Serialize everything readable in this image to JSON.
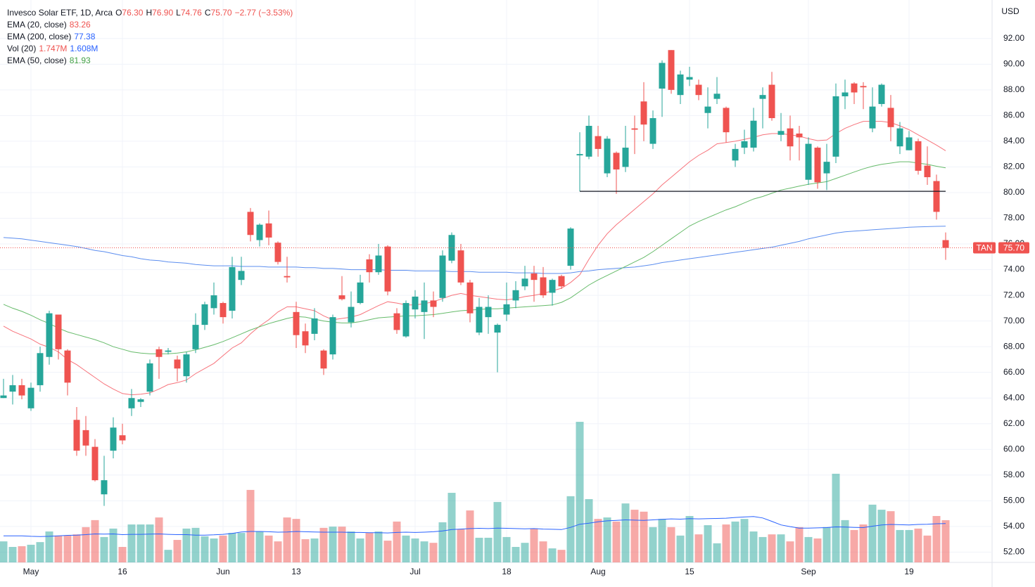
{
  "chart_data": {
    "type": "candlestick",
    "legend": {
      "title": "Invesco Solar ETF, 1D, Arca",
      "ohlc": [
        [
          "O",
          "76.30"
        ],
        [
          "H",
          "76.90"
        ],
        [
          "L",
          "74.76"
        ],
        [
          "C",
          "75.70"
        ]
      ],
      "change": "−2.77 (−3.53%)",
      "change_color": "#ef5350"
    },
    "currency": "USD",
    "ticker": "TAN",
    "last_price_label": "75.70",
    "up_color": "#26a69a",
    "down_color": "#ef5350",
    "ylim": [
      51.2,
      95
    ],
    "yticks": [
      {
        "value": 52,
        "label": "52.00"
      },
      {
        "value": 54,
        "label": "54.00"
      },
      {
        "value": 56,
        "label": "56.00"
      },
      {
        "value": 58,
        "label": "58.00"
      },
      {
        "value": 60,
        "label": "60.00"
      },
      {
        "value": 62,
        "label": "62.00"
      },
      {
        "value": 64,
        "label": "64.00"
      },
      {
        "value": 66,
        "label": "66.00"
      },
      {
        "value": 68,
        "label": "68.00"
      },
      {
        "value": 70,
        "label": "70.00"
      },
      {
        "value": 72,
        "label": "72.00"
      },
      {
        "value": 74,
        "label": "74.00"
      },
      {
        "value": 76,
        "label": "76.00"
      },
      {
        "value": 78,
        "label": "78.00"
      },
      {
        "value": 80,
        "label": "80.00"
      },
      {
        "value": 82,
        "label": "82.00"
      },
      {
        "value": 84,
        "label": "84.00"
      },
      {
        "value": 86,
        "label": "86.00"
      },
      {
        "value": 88,
        "label": "88.00"
      },
      {
        "value": 90,
        "label": "90.00"
      },
      {
        "value": 92,
        "label": "92.00"
      }
    ],
    "grid": true,
    "categories": [
      null,
      null,
      null,
      "May",
      null,
      null,
      null,
      null,
      null,
      null,
      null,
      null,
      null,
      "16",
      null,
      null,
      null,
      null,
      null,
      null,
      null,
      null,
      null,
      null,
      "Jun",
      null,
      null,
      null,
      null,
      null,
      null,
      null,
      "13",
      null,
      null,
      null,
      null,
      null,
      null,
      null,
      null,
      null,
      null,
      null,
      null,
      "Jul",
      null,
      null,
      null,
      null,
      null,
      null,
      null,
      null,
      null,
      "18",
      null,
      null,
      null,
      null,
      null,
      null,
      null,
      null,
      null,
      "Aug",
      null,
      null,
      null,
      null,
      null,
      null,
      null,
      null,
      null,
      "15",
      null,
      null,
      null,
      null,
      null,
      null,
      null,
      null,
      null,
      null,
      null,
      null,
      "Sep",
      null,
      null,
      null,
      null,
      null,
      null,
      null,
      null,
      null,
      null,
      "19",
      null,
      null,
      null,
      null
    ],
    "open": [
      64,
      64.5,
      65,
      63.2,
      65,
      67.2,
      70.5,
      67.7,
      62.3,
      61.5,
      60.2,
      56.5,
      59.9,
      61.1,
      63.2,
      63.7,
      64.5,
      67.8,
      67.6,
      67,
      65.7,
      67.8,
      69.7,
      71,
      71.4,
      70.8,
      73.2,
      78.5,
      76.3,
      77.6,
      76.1,
      73.5,
      70.7,
      69.2,
      69,
      67.7,
      67.4,
      72,
      69.9,
      71.4,
      74.8,
      73.8,
      75.8,
      70.6,
      68.8,
      70.9,
      70.7,
      71.6,
      71.8,
      74.7,
      75.5,
      73,
      69.1,
      70.3,
      69.1,
      70.5,
      71.6,
      72.7,
      73.7,
      73.4,
      72.2,
      73.5,
      74.3,
      82.9,
      82.8,
      84.4,
      81.5,
      83.1,
      82,
      85,
      87.1,
      83.8,
      88.1,
      91.1,
      87.6,
      88.8,
      88.4,
      86.2,
      87.3,
      86.6,
      82.5,
      83.5,
      83.5,
      87.3,
      88.4,
      84.5,
      85,
      84.6,
      81,
      83.5,
      81.5,
      82.8,
      87.5,
      88.5,
      88.3,
      85,
      86.9,
      86.6,
      83.6,
      83.3,
      84,
      82.1,
      80.9,
      76.3
    ],
    "high": [
      65.5,
      65.8,
      65.5,
      65.2,
      68,
      70.8,
      70.5,
      67.8,
      63.3,
      62.6,
      60.8,
      59.5,
      62.5,
      62,
      64.7,
      64,
      67,
      68,
      67.9,
      67.3,
      67.6,
      70.6,
      71.5,
      73,
      71.5,
      75,
      75,
      78.8,
      77.6,
      78.6,
      76.2,
      75,
      71.5,
      69.8,
      71,
      67.8,
      70.5,
      73.5,
      72.3,
      73.6,
      75.2,
      76,
      75.9,
      71,
      71.6,
      72.4,
      73,
      72.3,
      75.5,
      76.9,
      76,
      73.2,
      71.8,
      72,
      69.8,
      73,
      73.1,
      74.3,
      74.3,
      74.2,
      73.3,
      73.6,
      77.3,
      84.7,
      86,
      85.2,
      84.4,
      83.2,
      85.2,
      86,
      88.6,
      86.4,
      90.3,
      91.1,
      89.5,
      89.8,
      88.8,
      88.2,
      89,
      86.7,
      83.8,
      84.9,
      86.6,
      88.2,
      89.4,
      86.2,
      86,
      85.2,
      84.3,
      83.6,
      83.8,
      88.5,
      88.8,
      88.6,
      88.6,
      88.2,
      88.5,
      87.6,
      85.5,
      84.8,
      84.2,
      83.6,
      81.4,
      76.9
    ],
    "low": [
      64,
      63.5,
      63.9,
      63,
      64.5,
      66.6,
      67,
      64.2,
      59.5,
      59.5,
      57.5,
      55.6,
      59.3,
      60.4,
      62.6,
      63.3,
      64.2,
      65.5,
      67.4,
      65.3,
      65.2,
      67.5,
      69.3,
      70.5,
      69.8,
      70.2,
      72.8,
      76.2,
      75.8,
      75.9,
      74.4,
      73,
      67.9,
      67.5,
      68.5,
      65.8,
      67,
      71.6,
      69.5,
      71.3,
      73,
      73.6,
      72,
      69,
      68.7,
      70.2,
      68.6,
      70.3,
      71.5,
      74.5,
      72.8,
      69.9,
      68.9,
      69,
      66,
      70,
      71,
      72.4,
      71.5,
      71.8,
      71.2,
      72.5,
      74,
      80.1,
      82.6,
      82.8,
      81.2,
      79.9,
      81.6,
      83,
      84,
      83.4,
      85.9,
      87.7,
      86.9,
      88.3,
      87.2,
      85,
      86.9,
      83.9,
      82,
      83,
      83.2,
      85,
      85.6,
      84,
      82.5,
      82.5,
      80.6,
      80.3,
      80.2,
      82.3,
      86.5,
      86.9,
      86.5,
      84.7,
      86.7,
      84,
      83,
      83.3,
      81.4,
      80.6,
      77.9,
      74.76
    ],
    "close": [
      64.2,
      65,
      64.2,
      64.8,
      67.5,
      70.6,
      67.8,
      65.2,
      59.9,
      60.3,
      57.6,
      57.6,
      61.7,
      60.7,
      64,
      63.9,
      66.7,
      67.2,
      67.7,
      66.3,
      67.4,
      69.7,
      71.3,
      72,
      70.3,
      74.2,
      73.9,
      76.7,
      77.5,
      76.5,
      74.6,
      73.4,
      68.9,
      68.1,
      70.2,
      66.3,
      70.3,
      71.7,
      71.1,
      73,
      73.8,
      75.1,
      72.3,
      69.3,
      71.4,
      71.9,
      71.6,
      71.1,
      75.1,
      76.7,
      73,
      70.6,
      71.1,
      71.1,
      69.7,
      71.3,
      72.4,
      73.3,
      73.2,
      72,
      73.2,
      72.7,
      77.2,
      83,
      85.2,
      83.4,
      84.2,
      81.8,
      83.5,
      84.9,
      85.3,
      85.8,
      90.1,
      88,
      89.2,
      89,
      87.6,
      86.7,
      87.7,
      84.7,
      83.4,
      84,
      85.6,
      87.6,
      85.8,
      84.8,
      83.6,
      84.3,
      83.8,
      80.8,
      82.4,
      87.5,
      87.8,
      87.8,
      88.2,
      86.7,
      88.4,
      85.1,
      85,
      84.3,
      81.7,
      81.2,
      78.5,
      75.7
    ],
    "volume": [
      0.87,
      0.64,
      0.67,
      0.73,
      0.84,
      1.28,
      1.11,
      1.11,
      1.16,
      1.46,
      1.75,
      1.05,
      1.4,
      0.64,
      1.57,
      1.57,
      1.57,
      1.86,
      0.52,
      0.93,
      1.4,
      1.43,
      1.08,
      0.99,
      1.11,
      1.22,
      1.22,
      3.0,
      1.28,
      1.11,
      0.87,
      1.86,
      1.8,
      0.96,
      0.99,
      1.43,
      1.48,
      1.48,
      1.28,
      0.99,
      1.22,
      1.28,
      0.9,
      1.69,
      1.11,
      0.99,
      0.87,
      0.81,
      1.66,
      2.88,
      1.37,
      2.15,
      1.02,
      1.02,
      2.5,
      1.05,
      0.64,
      0.81,
      1.4,
      0.87,
      0.58,
      0.52,
      2.74,
      5.82,
      2.62,
      1.8,
      1.86,
      1.69,
      2.44,
      2.18,
      2.1,
      1.46,
      1.8,
      1.46,
      1.11,
      1.92,
      1.16,
      1.54,
      0.79,
      1.57,
      1.69,
      1.8,
      1.28,
      1.05,
      1.16,
      1.16,
      0.87,
      1.46,
      1.05,
      0.99,
      1.46,
      3.67,
      1.75,
      1.34,
      1.57,
      2.39,
      2.18,
      2.12,
      1.34,
      1.34,
      1.4,
      1.11,
      1.92,
      1.747
    ],
    "indicators": [
      {
        "name": "EMA (20, close)",
        "pane": "price",
        "color": "#f7737b",
        "legend_values": [
          "83.26"
        ],
        "legend_colors": [
          "#ef5350"
        ],
        "values": [
          69.6,
          69.2,
          68.9,
          68.6,
          68.2,
          67.95,
          67.6,
          67.0,
          66.6,
          66.1,
          65.6,
          65.1,
          64.7,
          64.35,
          64.25,
          64.3,
          64.4,
          64.7,
          65.05,
          65.2,
          65.4,
          65.9,
          66.3,
          66.7,
          67.3,
          67.9,
          68.3,
          69.0,
          69.6,
          70.1,
          70.7,
          71.1,
          71.1,
          70.95,
          70.8,
          70.4,
          70.1,
          70.2,
          70.3,
          70.5,
          70.85,
          71.2,
          71.5,
          71.4,
          71.25,
          71.25,
          71.35,
          71.5,
          71.75,
          72.0,
          72.15,
          72.0,
          71.9,
          71.8,
          71.7,
          71.65,
          71.75,
          71.9,
          72.0,
          72.15,
          72.35,
          72.55,
          73.0,
          73.6,
          74.8,
          75.9,
          76.8,
          77.5,
          78.1,
          78.7,
          79.3,
          79.9,
          80.6,
          81.2,
          81.8,
          82.4,
          82.9,
          83.3,
          83.8,
          83.9,
          84.0,
          84.15,
          84.3,
          84.5,
          84.6,
          84.6,
          84.5,
          84.4,
          84.2,
          84.05,
          84.1,
          84.6,
          85.0,
          85.3,
          85.55,
          85.55,
          85.55,
          85.45,
          85.2,
          84.9,
          84.5,
          84.1,
          83.7,
          83.26
        ]
      },
      {
        "name": "EMA (200, close)",
        "pane": "price",
        "color": "#5b8def",
        "legend_values": [
          "77.38"
        ],
        "legend_colors": [
          "#2962ff"
        ],
        "values": [
          76.5,
          76.45,
          76.4,
          76.3,
          76.2,
          76.1,
          76.0,
          75.9,
          75.8,
          75.65,
          75.5,
          75.4,
          75.25,
          75.1,
          75.0,
          74.85,
          74.75,
          74.7,
          74.6,
          74.55,
          74.5,
          74.4,
          74.35,
          74.3,
          74.3,
          74.3,
          74.25,
          74.25,
          74.25,
          74.2,
          74.2,
          74.2,
          74.2,
          74.15,
          74.15,
          74.1,
          74.1,
          74.05,
          74.0,
          74.0,
          74.0,
          74.0,
          73.95,
          73.95,
          73.95,
          73.9,
          73.9,
          73.9,
          73.9,
          73.85,
          73.85,
          73.85,
          73.8,
          73.8,
          73.8,
          73.8,
          73.75,
          73.75,
          73.75,
          73.7,
          73.7,
          73.7,
          73.75,
          73.85,
          73.9,
          74.0,
          74.05,
          74.1,
          74.15,
          74.2,
          74.3,
          74.4,
          74.55,
          74.65,
          74.75,
          74.85,
          74.95,
          75.05,
          75.15,
          75.25,
          75.35,
          75.45,
          75.55,
          75.65,
          75.75,
          75.9,
          76.05,
          76.2,
          76.4,
          76.55,
          76.7,
          76.85,
          76.95,
          77.0,
          77.05,
          77.1,
          77.15,
          77.2,
          77.25,
          77.3,
          77.33,
          77.35,
          77.37,
          77.38
        ]
      },
      {
        "name": "Vol (20)",
        "pane": "volume",
        "color": "#2962ff",
        "legend_values": [
          "1.747M",
          "1.608M"
        ],
        "legend_colors": [
          "#ef5350",
          "#2962ff"
        ],
        "values": [
          1.1,
          1.1,
          1.1,
          1.08,
          1.07,
          1.08,
          1.1,
          1.12,
          1.13,
          1.15,
          1.18,
          1.17,
          1.18,
          1.15,
          1.16,
          1.16,
          1.17,
          1.18,
          1.16,
          1.15,
          1.15,
          1.13,
          1.13,
          1.14,
          1.16,
          1.2,
          1.26,
          1.28,
          1.28,
          1.27,
          1.25,
          1.26,
          1.28,
          1.27,
          1.26,
          1.25,
          1.25,
          1.25,
          1.24,
          1.24,
          1.23,
          1.23,
          1.22,
          1.24,
          1.25,
          1.24,
          1.25,
          1.27,
          1.3,
          1.36,
          1.38,
          1.4,
          1.41,
          1.4,
          1.42,
          1.41,
          1.4,
          1.39,
          1.4,
          1.38,
          1.37,
          1.36,
          1.45,
          1.58,
          1.62,
          1.68,
          1.72,
          1.74,
          1.76,
          1.75,
          1.74,
          1.76,
          1.78,
          1.8,
          1.79,
          1.81,
          1.8,
          1.81,
          1.82,
          1.83,
          1.86,
          1.88,
          1.9,
          1.84,
          1.7,
          1.55,
          1.48,
          1.42,
          1.42,
          1.43,
          1.44,
          1.47,
          1.46,
          1.45,
          1.44,
          1.5,
          1.55,
          1.57,
          1.56,
          1.55,
          1.57,
          1.58,
          1.6,
          1.608
        ]
      },
      {
        "name": "EMA (50, close)",
        "pane": "price",
        "color": "#66bb6a",
        "legend_values": [
          "81.93"
        ],
        "legend_colors": [
          "#43a047"
        ],
        "values": [
          71.3,
          71.0,
          70.75,
          70.45,
          70.1,
          69.8,
          69.45,
          69.15,
          68.95,
          68.75,
          68.55,
          68.3,
          68.0,
          67.8,
          67.6,
          67.5,
          67.45,
          67.45,
          67.45,
          67.5,
          67.6,
          67.75,
          67.95,
          68.15,
          68.4,
          68.7,
          69.0,
          69.3,
          69.55,
          69.8,
          70.0,
          70.2,
          70.35,
          70.3,
          70.15,
          70.0,
          69.9,
          69.85,
          69.85,
          69.95,
          70.1,
          70.25,
          70.3,
          70.35,
          70.4,
          70.4,
          70.45,
          70.5,
          70.6,
          70.7,
          70.8,
          70.85,
          70.9,
          70.95,
          70.95,
          71.0,
          71.05,
          71.1,
          71.15,
          71.2,
          71.25,
          71.45,
          71.8,
          72.3,
          72.8,
          73.2,
          73.55,
          73.9,
          74.25,
          74.6,
          74.95,
          75.4,
          75.9,
          76.4,
          76.9,
          77.4,
          77.75,
          78.05,
          78.35,
          78.65,
          78.9,
          79.2,
          79.5,
          79.7,
          79.95,
          80.2,
          80.35,
          80.5,
          80.65,
          80.75,
          80.85,
          81.1,
          81.35,
          81.6,
          81.85,
          82.05,
          82.2,
          82.3,
          82.4,
          82.4,
          82.3,
          82.2,
          82.05,
          81.93
        ]
      }
    ],
    "hline": {
      "value": 80.1,
      "from_index": 63,
      "color": "#131722"
    }
  }
}
